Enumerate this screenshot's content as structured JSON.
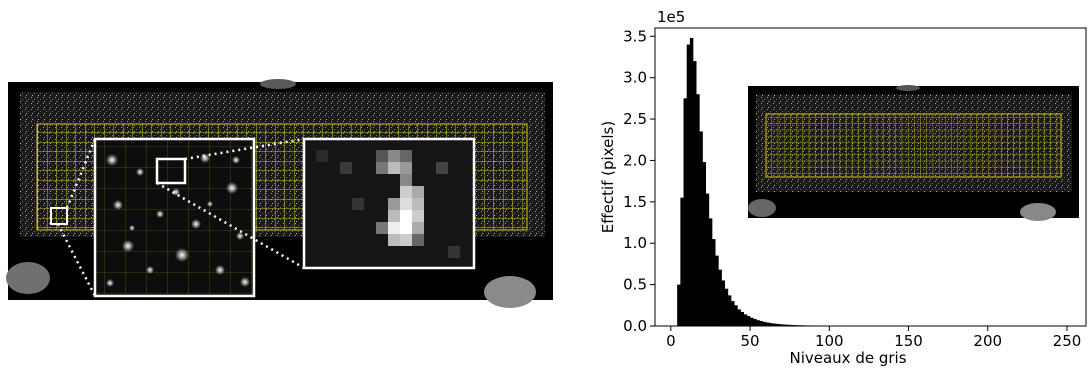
{
  "colors": {
    "grid": "#d4c21f",
    "background": "#000000",
    "zoom_frame": "#ffffff",
    "bars": "#000000"
  },
  "chart_data": {
    "type": "bar",
    "title": "",
    "xlabel": "Niveaux de gris",
    "ylabel": "Effectif (pixels)",
    "y_scale_label": "1e5",
    "xlim": [
      -10,
      262
    ],
    "ylim": [
      0,
      3.6
    ],
    "x_ticks": [
      0,
      50,
      100,
      150,
      200,
      250
    ],
    "y_ticks": [
      0.0,
      0.5,
      1.0,
      1.5,
      2.0,
      2.5,
      3.0,
      3.5
    ],
    "y_tick_labels": [
      "0.0",
      "0.5",
      "1.0",
      "1.5",
      "2.0",
      "2.5",
      "3.0",
      "3.5"
    ],
    "bin_width": 2,
    "bin_starts": [
      4,
      6,
      8,
      10,
      12,
      14,
      16,
      18,
      20,
      22,
      24,
      26,
      28,
      30,
      32,
      34,
      36,
      38,
      40,
      42,
      44,
      46,
      48,
      50,
      52,
      54,
      56,
      58,
      60,
      62,
      64,
      66,
      68,
      70,
      72,
      74,
      76,
      78,
      80,
      84,
      88,
      92,
      96,
      100,
      110,
      120
    ],
    "values": [
      0.5,
      1.55,
      2.75,
      3.4,
      3.48,
      3.2,
      2.8,
      2.35,
      1.98,
      1.6,
      1.3,
      1.05,
      0.85,
      0.68,
      0.55,
      0.45,
      0.37,
      0.3,
      0.25,
      0.2,
      0.17,
      0.14,
      0.12,
      0.1,
      0.085,
      0.07,
      0.06,
      0.05,
      0.042,
      0.036,
      0.03,
      0.026,
      0.022,
      0.019,
      0.016,
      0.014,
      0.012,
      0.01,
      0.009,
      0.007,
      0.006,
      0.005,
      0.004,
      0.003,
      0.002,
      0.001
    ],
    "grid": false
  }
}
